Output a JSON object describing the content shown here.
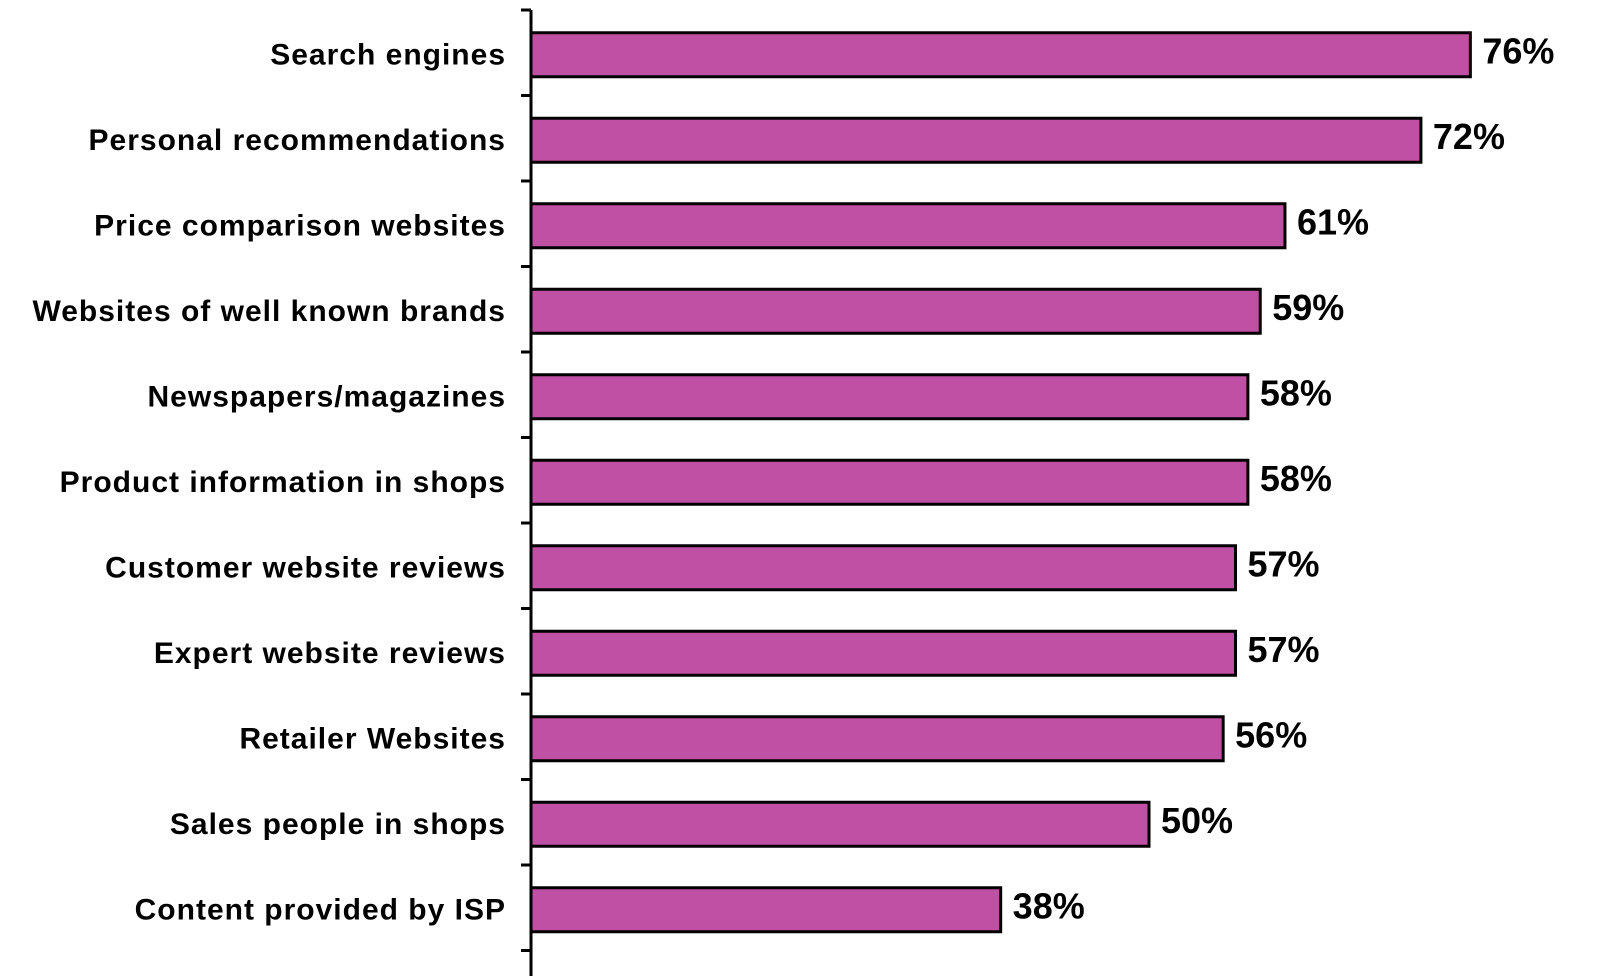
{
  "chart_data": {
    "type": "bar",
    "orientation": "horizontal",
    "categories": [
      "Search engines",
      "Personal recommendations",
      "Price comparison websites",
      "Websites of well known brands",
      "Newspapers/magazines",
      "Product information in shops",
      "Customer website reviews",
      "Expert website reviews",
      "Retailer Websites",
      "Sales people in shops",
      "Content provided by ISP"
    ],
    "values": [
      76,
      72,
      61,
      59,
      58,
      58,
      57,
      57,
      56,
      50,
      38
    ],
    "value_labels": [
      "76%",
      "72%",
      "61%",
      "59%",
      "58%",
      "58%",
      "57%",
      "57%",
      "56%",
      "50%",
      "38%"
    ],
    "xlim": [
      0,
      80
    ],
    "bar_color": "#C050A4",
    "grid": false,
    "legend": "none"
  }
}
